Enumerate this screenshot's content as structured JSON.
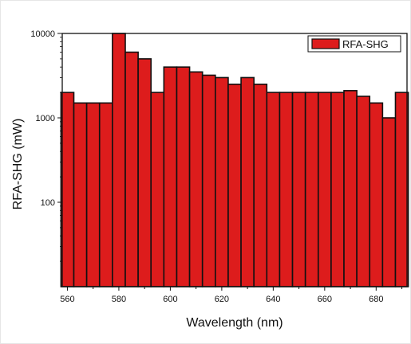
{
  "chart_data": {
    "type": "bar",
    "title": "",
    "xlabel": "Wavelength (nm)",
    "ylabel": "RFA-SHG (mW)",
    "y_scale": "log",
    "ylim": [
      10,
      10000
    ],
    "xlim": [
      558,
      692
    ],
    "x_ticks": [
      560,
      580,
      600,
      620,
      640,
      660,
      680
    ],
    "y_ticks": [
      100,
      1000,
      10000
    ],
    "y_tick_labels": [
      "100",
      "1000",
      "10000"
    ],
    "bar_width": 5,
    "bar_color": "#dd1c1c",
    "bar_edge_color": "#111111",
    "legend": {
      "label": "RFA-SHG",
      "position": "top-right"
    },
    "grid": false,
    "series": [
      {
        "name": "RFA-SHG",
        "x": [
          560,
          565,
          570,
          575,
          580,
          585,
          590,
          595,
          600,
          605,
          610,
          615,
          620,
          625,
          630,
          635,
          640,
          645,
          650,
          655,
          660,
          665,
          670,
          675,
          680,
          685,
          690
        ],
        "values": [
          2000,
          1500,
          1500,
          1500,
          10000,
          6000,
          5000,
          2000,
          4000,
          4000,
          3500,
          3200,
          3000,
          2500,
          3000,
          2500,
          2000,
          2000,
          2000,
          2000,
          2000,
          2000,
          2100,
          1800,
          1500,
          1000,
          2000
        ]
      }
    ]
  }
}
